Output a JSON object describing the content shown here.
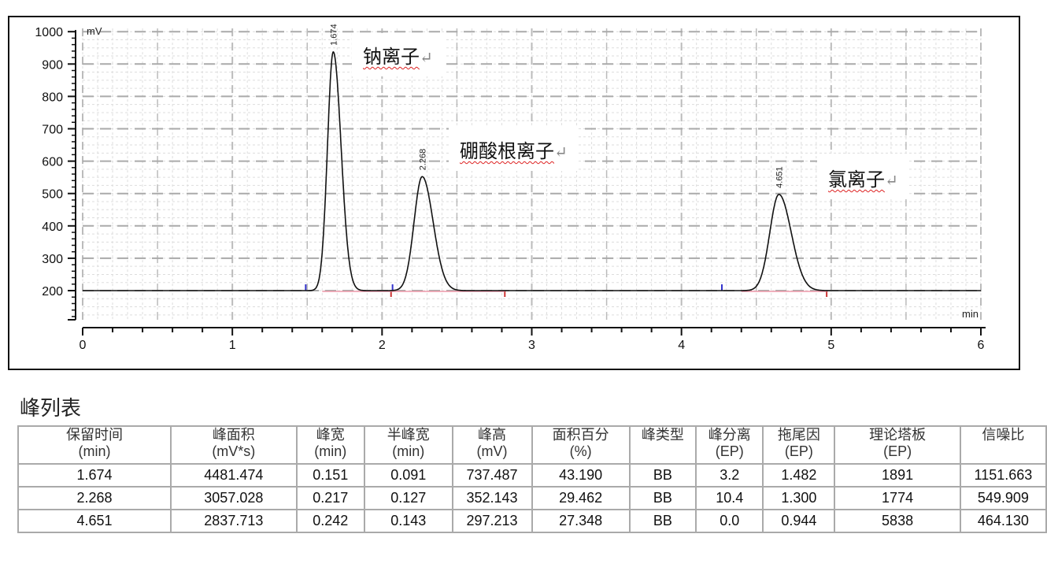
{
  "chart_data": {
    "type": "line",
    "ylabel": "mV",
    "xlabel": "min",
    "xlim": [
      0,
      6
    ],
    "ylim": [
      110,
      1000
    ],
    "x_ticks": [
      "0",
      "1",
      "2",
      "3",
      "4",
      "5",
      "6"
    ],
    "y_ticks": [
      "200",
      "300",
      "400",
      "500",
      "600",
      "700",
      "800",
      "900",
      "1000"
    ],
    "grid": true,
    "baseline_mV": 200,
    "peaks": [
      {
        "rt": 1.674,
        "rt_label": "1.674",
        "height_mV": 737.487,
        "half_width": 0.091,
        "label": "钠离子"
      },
      {
        "rt": 2.268,
        "rt_label": "2.268",
        "height_mV": 352.143,
        "half_width": 0.127,
        "label": "硼酸根离子"
      },
      {
        "rt": 4.651,
        "rt_label": "4.651",
        "height_mV": 297.213,
        "half_width": 0.143,
        "label": "氯离子"
      }
    ],
    "line_color": "#111111"
  },
  "table": {
    "title": "峰列表",
    "headers": [
      [
        "保留时间",
        "(min)"
      ],
      [
        "峰面积",
        "(mV*s)"
      ],
      [
        "峰宽",
        "(min)"
      ],
      [
        "半峰宽",
        "(min)"
      ],
      [
        "峰高",
        "(mV)"
      ],
      [
        "面积百分",
        "(%)"
      ],
      [
        "峰类型",
        ""
      ],
      [
        "峰分离",
        "(EP)"
      ],
      [
        "拖尾因",
        "(EP)"
      ],
      [
        "理论塔板",
        "(EP)"
      ],
      [
        "信噪比",
        ""
      ]
    ],
    "rows": [
      [
        "1.674",
        "4481.474",
        "0.151",
        "0.091",
        "737.487",
        "43.190",
        "BB",
        "3.2",
        "1.482",
        "1891",
        "1151.663"
      ],
      [
        "2.268",
        "3057.028",
        "0.217",
        "0.127",
        "352.143",
        "29.462",
        "BB",
        "10.4",
        "1.300",
        "1774",
        "549.909"
      ],
      [
        "4.651",
        "2837.713",
        "0.242",
        "0.143",
        "297.213",
        "27.348",
        "BB",
        "0.0",
        "0.944",
        "5838",
        "464.130"
      ]
    ]
  }
}
